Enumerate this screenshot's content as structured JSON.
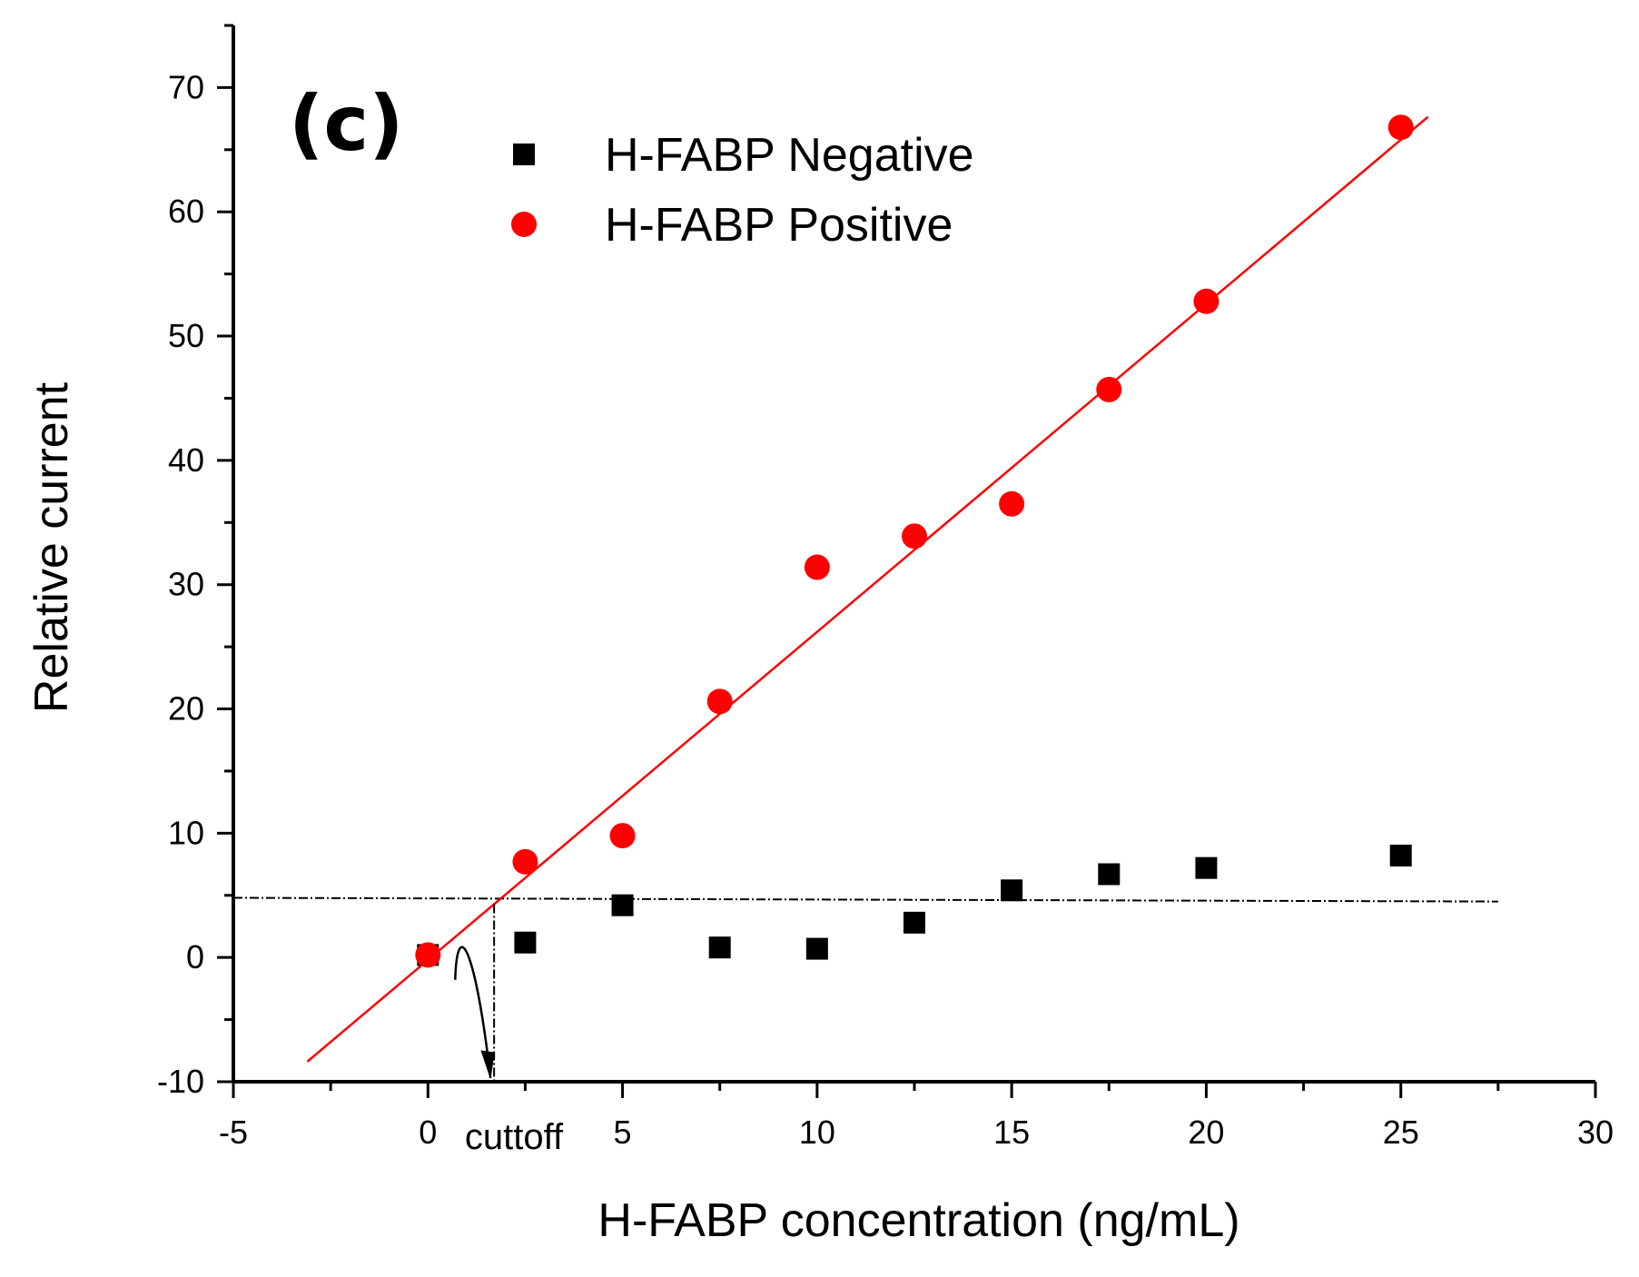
{
  "chart_data": {
    "type": "scatter",
    "panel_label": "(c)",
    "xlabel": "H-FABP concentration (ng/mL)",
    "ylabel": "Relative current",
    "xlim": [
      -5,
      30
    ],
    "ylim": [
      -10,
      75
    ],
    "x_ticks": [
      -5,
      0,
      5,
      10,
      15,
      20,
      25,
      30
    ],
    "y_ticks": [
      -10,
      0,
      10,
      20,
      30,
      40,
      50,
      60,
      70
    ],
    "grid": false,
    "legend_position": "top-left",
    "series": [
      {
        "name": "H-FABP Negative",
        "marker": "square",
        "color": "#000000",
        "points": [
          {
            "x": 0,
            "y": 0.2
          },
          {
            "x": 2.5,
            "y": 1.2
          },
          {
            "x": 5,
            "y": 4.2
          },
          {
            "x": 7.5,
            "y": 0.8
          },
          {
            "x": 10,
            "y": 0.7
          },
          {
            "x": 12.5,
            "y": 2.8
          },
          {
            "x": 15,
            "y": 5.4
          },
          {
            "x": 17.5,
            "y": 6.7
          },
          {
            "x": 20,
            "y": 7.2
          },
          {
            "x": 25,
            "y": 8.2
          }
        ]
      },
      {
        "name": "H-FABP Positive",
        "marker": "circle",
        "color": "#ff0000",
        "points": [
          {
            "x": 0,
            "y": 0.2
          },
          {
            "x": 2.5,
            "y": 7.7
          },
          {
            "x": 5,
            "y": 9.8
          },
          {
            "x": 7.5,
            "y": 20.6
          },
          {
            "x": 10,
            "y": 31.4
          },
          {
            "x": 12.5,
            "y": 33.9
          },
          {
            "x": 15,
            "y": 36.5
          },
          {
            "x": 17.5,
            "y": 45.7
          },
          {
            "x": 20,
            "y": 52.8
          },
          {
            "x": 25,
            "y": 66.8
          }
        ]
      }
    ],
    "fit_line": {
      "color": "#ff0000",
      "x_start": -3.1,
      "x_end": 25.7,
      "slope": 2.64,
      "intercept": -0.2
    },
    "cutoff_line": {
      "y_left": 4.8,
      "y_right": 4.5,
      "x_start": -5,
      "x_end": 27.5,
      "color": "#000000"
    },
    "cutoff_marker": {
      "x": 1.7,
      "label": "cuttoff"
    }
  }
}
